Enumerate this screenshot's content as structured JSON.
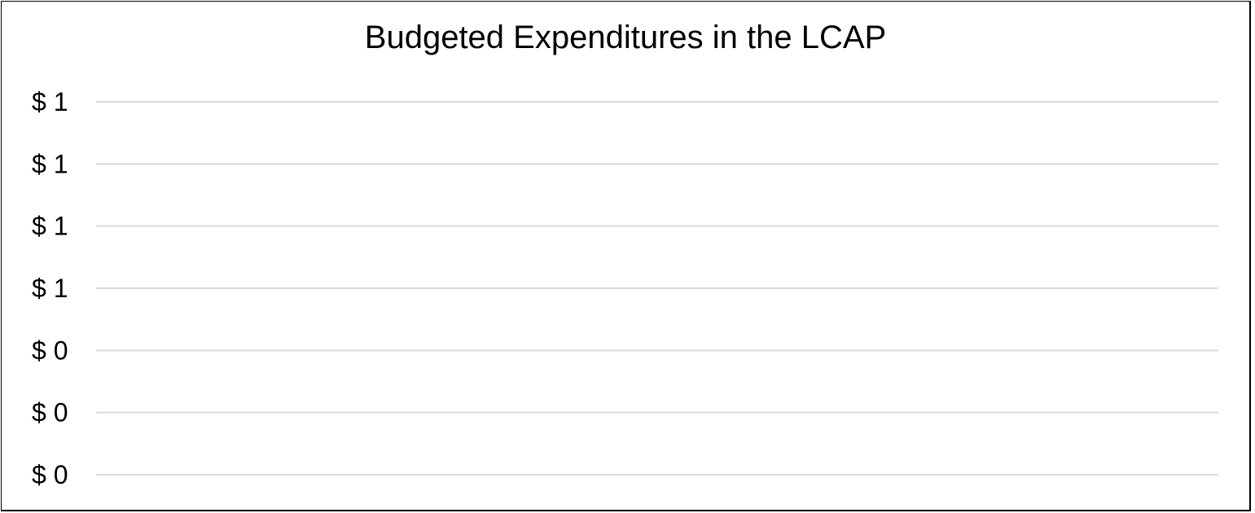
{
  "chart_data": {
    "type": "bar",
    "title": "Budgeted Expenditures in the LCAP",
    "xlabel": "",
    "ylabel": "",
    "categories": [],
    "series": [],
    "ylim": [
      0,
      1.2
    ],
    "y_ticks": [
      {
        "value": 1.2,
        "label": "$ 1"
      },
      {
        "value": 1.0,
        "label": "$ 1"
      },
      {
        "value": 0.8,
        "label": "$ 1"
      },
      {
        "value": 0.6,
        "label": "$ 1"
      },
      {
        "value": 0.4,
        "label": "$ 0"
      },
      {
        "value": 0.2,
        "label": "$ 0"
      },
      {
        "value": 0.0,
        "label": "$ 0"
      }
    ],
    "grid": true,
    "legend": "none",
    "colors": {
      "gridline": "#d9d9d9",
      "text": "#000000",
      "border": "#000000"
    }
  }
}
